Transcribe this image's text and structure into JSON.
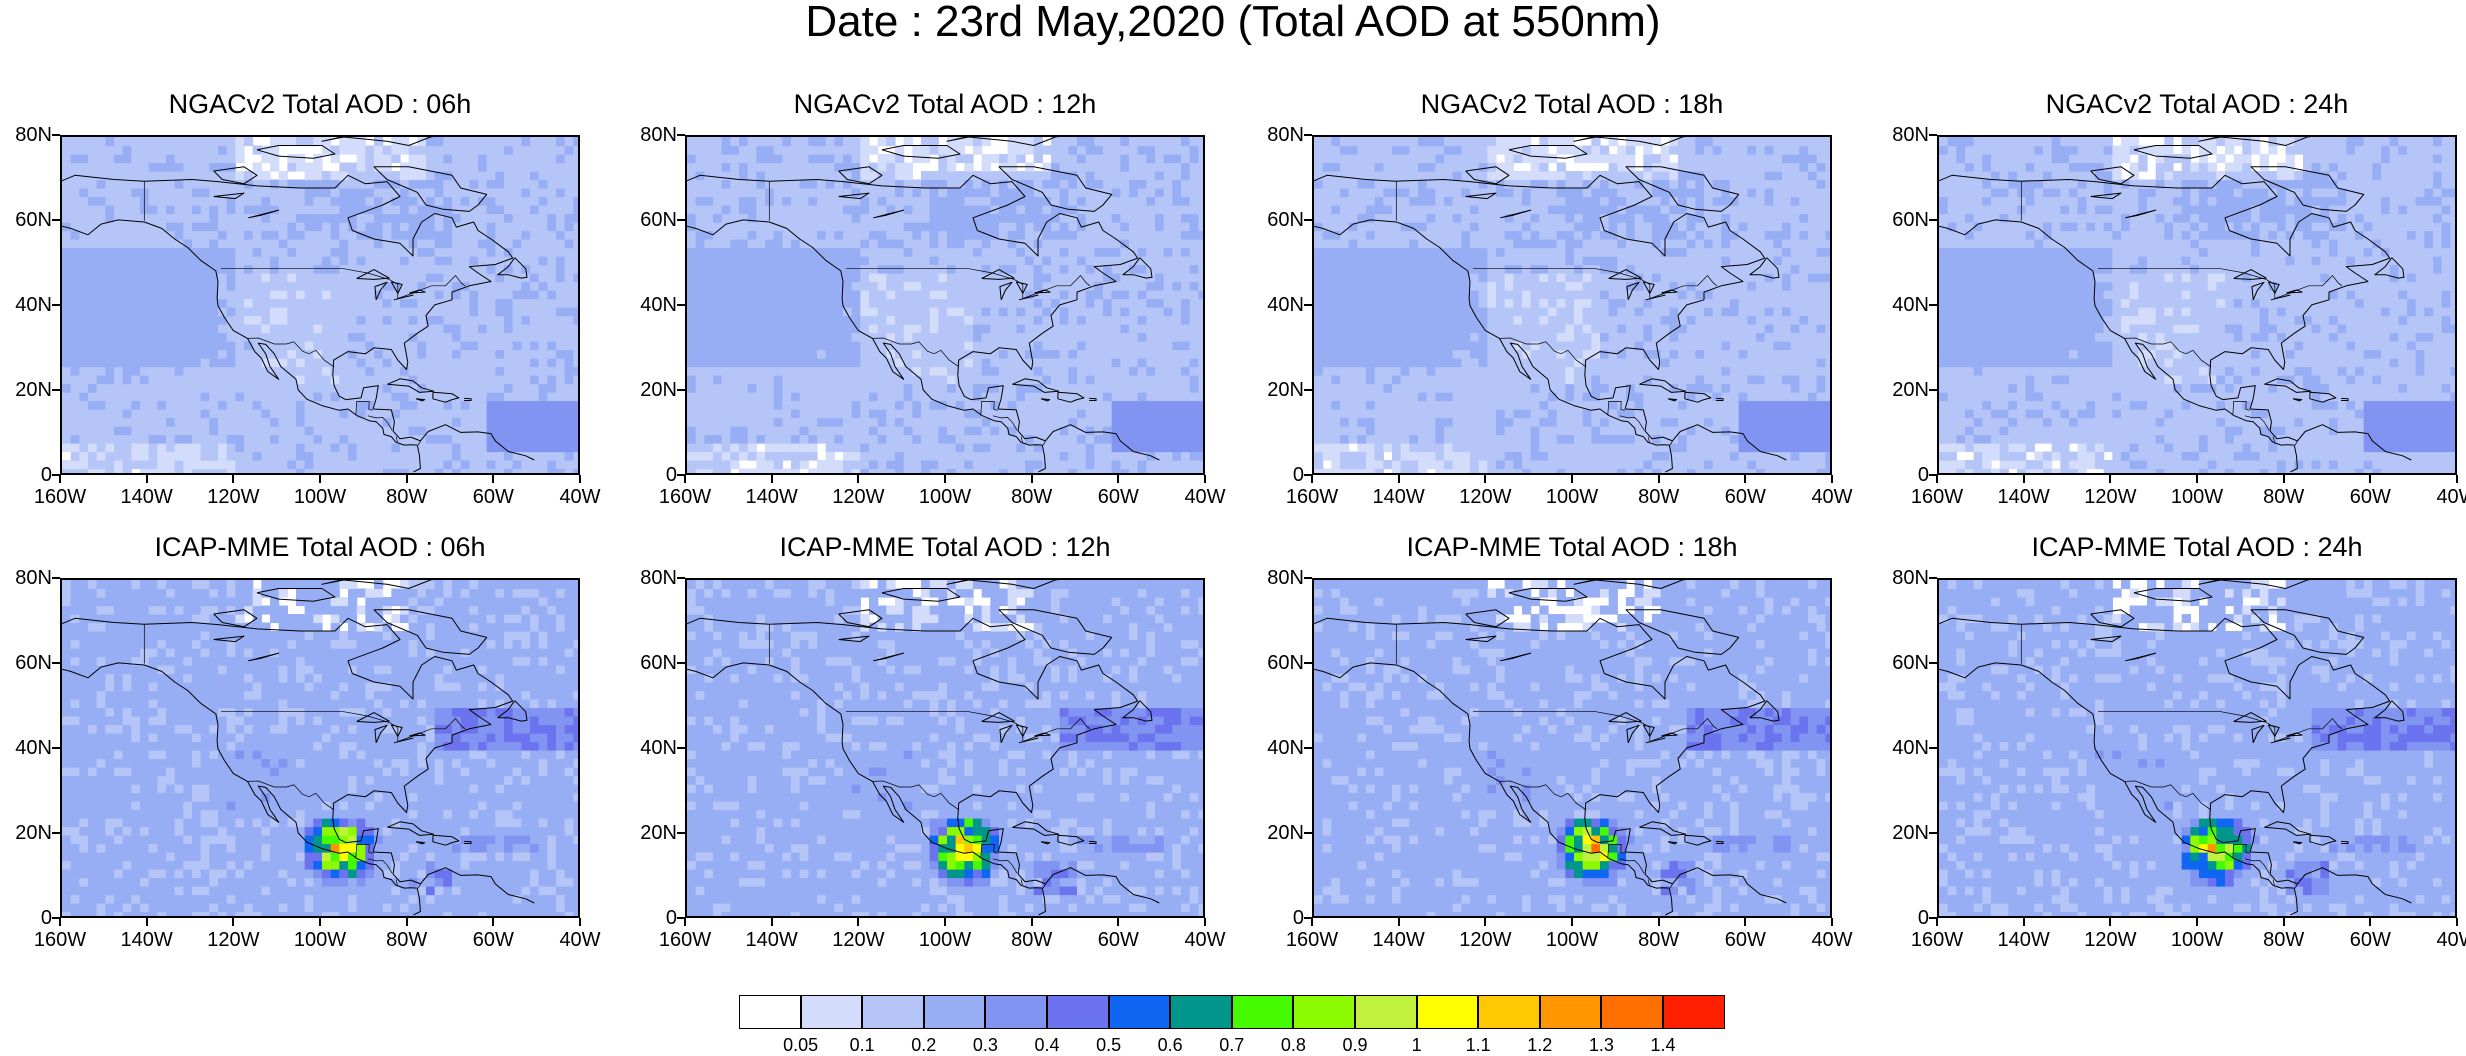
{
  "title": "Date : 23rd May,2020 (Total AOD at 550nm)",
  "panels": [
    {
      "title": "NGACv2 Total AOD : 06h",
      "model": "NGACv2",
      "lead": "06h"
    },
    {
      "title": "NGACv2 Total AOD : 12h",
      "model": "NGACv2",
      "lead": "12h"
    },
    {
      "title": "NGACv2 Total AOD : 18h",
      "model": "NGACv2",
      "lead": "18h"
    },
    {
      "title": "NGACv2 Total AOD : 24h",
      "model": "NGACv2",
      "lead": "24h"
    },
    {
      "title": "ICAP-MME Total AOD : 06h",
      "model": "ICAP-MME",
      "lead": "06h"
    },
    {
      "title": "ICAP-MME Total AOD : 12h",
      "model": "ICAP-MME",
      "lead": "12h"
    },
    {
      "title": "ICAP-MME Total AOD : 18h",
      "model": "ICAP-MME",
      "lead": "18h"
    },
    {
      "title": "ICAP-MME Total AOD : 24h",
      "model": "ICAP-MME",
      "lead": "24h"
    }
  ],
  "axes": {
    "lat_labels": [
      "80N",
      "60N",
      "40N",
      "20N",
      "0"
    ],
    "lat_values": [
      80,
      60,
      40,
      20,
      0
    ],
    "lon_labels": [
      "160W",
      "140W",
      "120W",
      "100W",
      "80W",
      "60W",
      "40W"
    ],
    "lon_values": [
      -160,
      -140,
      -120,
      -100,
      -80,
      -60,
      -40
    ]
  },
  "colorbar": {
    "levels": [
      "0.05",
      "0.1",
      "0.2",
      "0.3",
      "0.4",
      "0.5",
      "0.6",
      "0.7",
      "0.8",
      "0.9",
      "1",
      "1.1",
      "1.2",
      "1.3",
      "1.4"
    ],
    "colors": [
      "#ffffff",
      "#d3dcfa",
      "#b5c5f7",
      "#97aef5",
      "#8194f2",
      "#6b73ee",
      "#0f66f2",
      "#00968c",
      "#46fa00",
      "#8cfa00",
      "#c0f23c",
      "#ffff00",
      "#ffc800",
      "#ff9600",
      "#ff7000",
      "#ff2000"
    ]
  }
}
